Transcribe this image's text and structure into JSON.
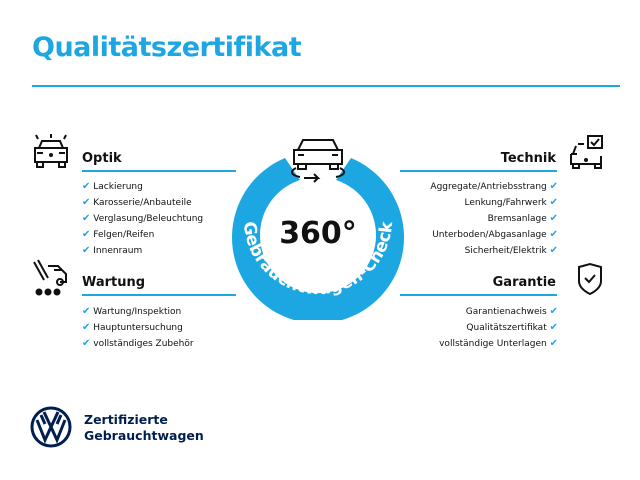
{
  "title": "Qualitätszertifikat",
  "badge": {
    "big": "360°",
    "arc_text": "Gebrauchtwagen-Check"
  },
  "colors": {
    "accent": "#1da7e2",
    "brand": "#001e50"
  },
  "sections": {
    "optik": {
      "title": "Optik",
      "icon": "car-lights-icon",
      "items": [
        "Lackierung",
        "Karosserie/Anbauteile",
        "Verglasung/Beleuchtung",
        "Felgen/Reifen",
        "Innenraum"
      ]
    },
    "wartung": {
      "title": "Wartung",
      "icon": "service-car-icon",
      "items": [
        "Wartung/Inspektion",
        "Hauptuntersuchung",
        "vollständiges Zubehör"
      ]
    },
    "technik": {
      "title": "Technik",
      "icon": "car-checkbox-icon",
      "items": [
        "Aggregate/Antriebsstrang",
        "Lenkung/Fahrwerk",
        "Bremsanlage",
        "Unterboden/Abgasanlage",
        "Sicherheit/Elektrik"
      ]
    },
    "garantie": {
      "title": "Garantie",
      "icon": "shield-check-icon",
      "items": [
        "Garantienachweis",
        "Qualitätszertifikat",
        "vollständige Unterlagen"
      ]
    }
  },
  "check_mark": "✔",
  "logo": {
    "line1": "Zertifizierte",
    "line2": "Gebrauchtwagen",
    "text": "VW"
  }
}
